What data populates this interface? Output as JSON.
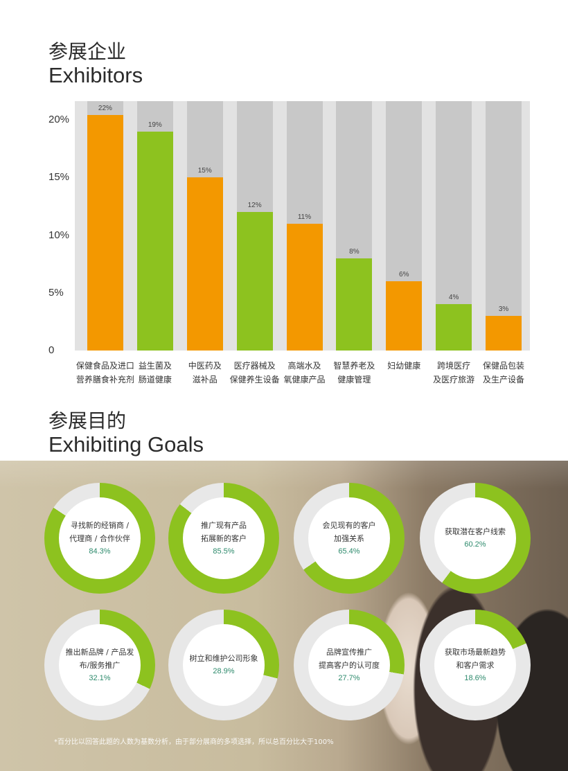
{
  "section1": {
    "title_cn": "参展企业",
    "title_en": "Exhibitors"
  },
  "section2": {
    "title_cn": "参展目的",
    "title_en": "Exhibiting Goals"
  },
  "colors": {
    "orange": "#f39800",
    "green": "#8dc21f",
    "track": "#c8c8c8",
    "chart_bg": "#e2e2e2",
    "donut_track": "#e8e8e8",
    "pct_text": "#2d8a6c"
  },
  "chart_data": [
    {
      "type": "bar",
      "title": "",
      "categories": [
        "保健食品及进口\n营养膳食补充剂",
        "益生菌及\n肠道健康",
        "中医药及\n滋补品",
        "医疗器械及\n保健养生设备",
        "高端水及\n氧健康产品",
        "智慧养老及\n健康管理",
        "妇幼健康",
        "跨境医疗\n及医疗旅游",
        "保健品包装\n及生产设备"
      ],
      "values": [
        22,
        19,
        15,
        12,
        11,
        8,
        6,
        4,
        3
      ],
      "data_labels": [
        "22%",
        "19%",
        "15%",
        "12%",
        "11%",
        "8%",
        "6%",
        "4%",
        "3%"
      ],
      "bar_colors": [
        "orange",
        "green",
        "orange",
        "green",
        "orange",
        "green",
        "orange",
        "green",
        "orange"
      ],
      "yticks": [
        "0",
        "5%",
        "10%",
        "15%",
        "20%"
      ],
      "ytick_values": [
        0,
        5,
        10,
        15,
        20
      ],
      "ylim": [
        0,
        21.6
      ],
      "grid": false
    },
    {
      "type": "pie",
      "variant": "donut",
      "items": [
        {
          "label": "寻找新的经销商 /\n代理商 / 合作伙伴",
          "value": 84.3,
          "text": "84.3%"
        },
        {
          "label": "推广现有产品\n拓展新的客户",
          "value": 85.5,
          "text": "85.5%"
        },
        {
          "label": "会见现有的客户\n加强关系",
          "value": 65.4,
          "text": "65.4%"
        },
        {
          "label": "获取潜在客户线索",
          "value": 60.2,
          "text": "60.2%"
        },
        {
          "label": "推出新品牌 / 产品发\n布/服务推广",
          "value": 32.1,
          "text": "32.1%"
        },
        {
          "label": "树立和维护公司形象",
          "value": 28.9,
          "text": "28.9%"
        },
        {
          "label": "品牌宣传推广\n提高客户的认可度",
          "value": 27.7,
          "text": "27.7%"
        },
        {
          "label": "获取市场最新趋势\n和客户需求",
          "value": 18.6,
          "text": "18.6%"
        }
      ]
    }
  ],
  "footnote": "*百分比以回答此题的人数为基数分析，由于部分展商的多项选择，所以总百分比大于100%"
}
